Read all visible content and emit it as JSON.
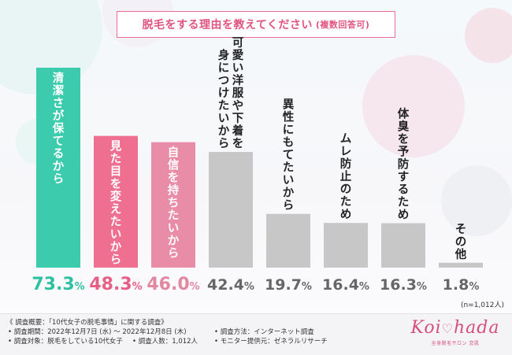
{
  "title": {
    "main": "脱毛をする理由を教えてください",
    "sub": "(複数回答可)"
  },
  "chart_data": {
    "type": "bar",
    "title": "脱毛をする理由を教えてください (複数回答可)",
    "categories": [
      "清潔さが保てるから",
      "見た目を変えたいから",
      "自信を持ちたいから",
      "可愛い洋服や下着を身につけたいから",
      "異性にもてたいから",
      "ムレ防止のため",
      "体臭を予防するため",
      "その他"
    ],
    "label_lines": [
      [
        "清潔さが保てるから"
      ],
      [
        "見た目を変えたいから"
      ],
      [
        "自信を持ちたいから"
      ],
      [
        "可愛い洋服や下着を",
        "身につけたいから"
      ],
      [
        "異性にもてたいから"
      ],
      [
        "ムレ防止のため"
      ],
      [
        "体臭を予防するため"
      ],
      [
        "その他"
      ]
    ],
    "values": [
      73.3,
      48.3,
      46.0,
      42.4,
      19.7,
      16.4,
      16.3,
      1.8
    ],
    "value_labels": [
      "73.3%",
      "48.3%",
      "46.0%",
      "42.4%",
      "19.7%",
      "16.4%",
      "16.3%",
      "1.8%"
    ],
    "ylim": [
      0,
      73.3
    ],
    "grid": false,
    "bar_colors": [
      "#3dcbad",
      "#ee6f90",
      "#e98ca7",
      "#c7c7c7",
      "#c7c7c7",
      "#c7c7c7",
      "#c7c7c7",
      "#c7c7c7"
    ],
    "value_colors": [
      "#2fbfa1",
      "#e85f86",
      "#e2879f",
      "#666666",
      "#666666",
      "#666666",
      "#666666",
      "#666666"
    ],
    "label_colors": [
      "#ffffff",
      "#ffffff",
      "#ffffff",
      "#222222",
      "#222222",
      "#222222",
      "#222222",
      "#222222"
    ],
    "note": "(n=1,012人)"
  },
  "footer": {
    "heading": "《 調査概要：「10代女子の脱毛事情」に関する調査》",
    "period": "調査期間：2022年12月7日 (水) 〜 2022年12月8日 (木)",
    "target": "調査対象：脱毛をしている10代女子",
    "count": "調査人数：1,012人",
    "method": "調査方法：インターネット調査",
    "provider": "モニター提供元：ゼネラルリサーチ"
  },
  "logo": {
    "left": "Koi",
    "right": "hada",
    "tagline": "全身脱毛サロン 恋肌"
  },
  "colors": {
    "accent_pink": "#e0557f",
    "teal": "#3dcbad",
    "gray_bar": "#c7c7c7"
  }
}
